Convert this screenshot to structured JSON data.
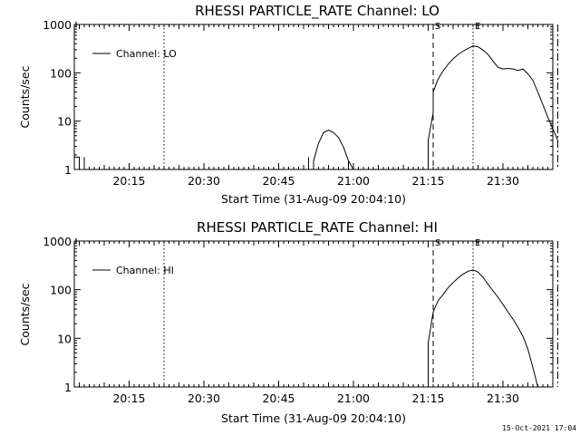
{
  "footer": {
    "timestamp": "15-Oct-2021 17:04"
  },
  "chart_data": [
    {
      "type": "line",
      "title": "RHESSI PARTICLE_RATE Channel: LO",
      "xlabel": "Start Time (31-Aug-09 20:04:10)",
      "ylabel": "Counts/sec",
      "yscale": "log",
      "ylim": [
        1,
        1000
      ],
      "xlim_minutes_after_2004": [
        0,
        96
      ],
      "xticks": [
        {
          "label": "20:15",
          "minute": 11
        },
        {
          "label": "20:30",
          "minute": 26
        },
        {
          "label": "20:45",
          "minute": 41
        },
        {
          "label": "21:00",
          "minute": 56
        },
        {
          "label": "21:15",
          "minute": 71
        },
        {
          "label": "21:30",
          "minute": 86
        }
      ],
      "yticks": [
        {
          "label": "1",
          "value": 1
        },
        {
          "label": "10",
          "value": 10
        },
        {
          "label": "100",
          "value": 100
        },
        {
          "label": "1000",
          "value": 1000
        }
      ],
      "legend": {
        "position": "top-left",
        "entries": [
          "Channel: LO"
        ]
      },
      "markers": [
        {
          "label": "S",
          "style": "dashed",
          "time": "21:16"
        },
        {
          "label": "E",
          "style": "dotted",
          "time": "21:24"
        },
        {
          "label": "",
          "style": "dotted",
          "time": "20:22"
        },
        {
          "label": "",
          "style": "dashdot",
          "time": "21:41"
        }
      ],
      "series": [
        {
          "name": "Channel: LO",
          "segments": [
            {
              "x": [
                "20:04",
                "20:04",
                "20:05",
                "20:05",
                "20:05"
              ],
              "y": [
                1,
                1.8,
                1.8,
                1,
                1
              ]
            },
            {
              "x": [
                "20:06",
                "20:06",
                "20:06"
              ],
              "y": [
                1,
                1.8,
                1
              ]
            },
            {
              "x": [
                "20:51",
                "20:51",
                "20:51"
              ],
              "y": [
                1,
                1.8,
                1
              ]
            },
            {
              "x": [
                "20:52",
                "20:52",
                "20:53",
                "20:54",
                "20:55",
                "20:56",
                "20:57",
                "20:58",
                "20:59",
                "20:59"
              ],
              "y": [
                1,
                1.5,
                3.5,
                5.8,
                6.5,
                5.8,
                4.6,
                2.9,
                1.5,
                1
              ]
            },
            {
              "x": [
                "20:59",
                "20:59",
                "21:00"
              ],
              "y": [
                1,
                1.5,
                1
              ]
            },
            {
              "x": [
                "21:15",
                "21:15",
                "21:16",
                "21:16",
                "21:17",
                "21:18",
                "21:19",
                "21:20",
                "21:21",
                "21:22",
                "21:23",
                "21:24",
                "21:25",
                "21:26",
                "21:27",
                "21:28",
                "21:29",
                "21:30",
                "21:31",
                "21:32",
                "21:33",
                "21:34",
                "21:35",
                "21:36",
                "21:37",
                "21:38",
                "21:39",
                "21:40",
                "21:41"
              ],
              "y": [
                1,
                4,
                15,
                40,
                75,
                110,
                150,
                195,
                240,
                280,
                320,
                360,
                345,
                295,
                240,
                175,
                130,
                120,
                123,
                120,
                112,
                120,
                95,
                70,
                40,
                22,
                12,
                7,
                4
              ]
            }
          ]
        }
      ]
    },
    {
      "type": "line",
      "title": "RHESSI PARTICLE_RATE Channel: HI",
      "xlabel": "Start Time (31-Aug-09 20:04:10)",
      "ylabel": "Counts/sec",
      "yscale": "log",
      "ylim": [
        1,
        1000
      ],
      "xlim_minutes_after_2004": [
        0,
        96
      ],
      "xticks": [
        {
          "label": "20:15",
          "minute": 11
        },
        {
          "label": "20:30",
          "minute": 26
        },
        {
          "label": "20:45",
          "minute": 41
        },
        {
          "label": "21:00",
          "minute": 56
        },
        {
          "label": "21:15",
          "minute": 71
        },
        {
          "label": "21:30",
          "minute": 86
        }
      ],
      "yticks": [
        {
          "label": "1",
          "value": 1
        },
        {
          "label": "10",
          "value": 10
        },
        {
          "label": "100",
          "value": 100
        },
        {
          "label": "1000",
          "value": 1000
        }
      ],
      "legend": {
        "position": "top-left",
        "entries": [
          "Channel: HI"
        ]
      },
      "markers": [
        {
          "label": "S",
          "style": "dashed",
          "time": "21:16"
        },
        {
          "label": "E",
          "style": "dotted",
          "time": "21:24"
        },
        {
          "label": "",
          "style": "dotted",
          "time": "20:22"
        },
        {
          "label": "",
          "style": "dashdot",
          "time": "21:41"
        }
      ],
      "series": [
        {
          "name": "Channel: HI",
          "segments": [
            {
              "x": [
                "21:15",
                "21:15",
                "21:16",
                "21:17",
                "21:18",
                "21:19",
                "21:20",
                "21:21",
                "21:22",
                "21:23",
                "21:24",
                "21:25",
                "21:26",
                "21:27",
                "21:28",
                "21:29",
                "21:30",
                "21:31",
                "21:32",
                "21:33",
                "21:34",
                "21:35",
                "21:36",
                "21:37"
              ],
              "y": [
                1,
                8,
                35,
                60,
                80,
                110,
                140,
                175,
                210,
                240,
                255,
                230,
                180,
                130,
                95,
                70,
                50,
                35,
                25,
                17,
                11,
                6,
                2.5,
                1
              ]
            }
          ]
        }
      ]
    }
  ]
}
